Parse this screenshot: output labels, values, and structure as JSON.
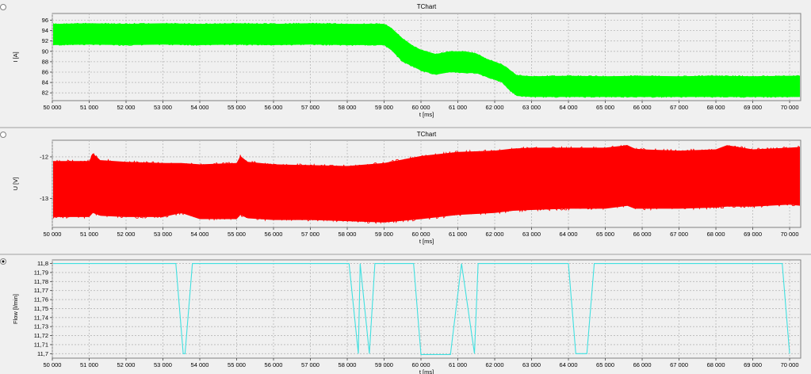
{
  "chart_data": [
    {
      "type": "line",
      "title": "TChart",
      "ylabel": "I [A]",
      "xlabel": "t [ms]",
      "xlim": [
        50000,
        70300
      ],
      "ylim": [
        80.5,
        97.3
      ],
      "xticks": [
        "50 000",
        "51 000",
        "52 000",
        "53 000",
        "54 000",
        "55 000",
        "56 000",
        "57 000",
        "58 000",
        "59 000",
        "60 000",
        "61 000",
        "62 000",
        "63 000",
        "64 000",
        "65 000",
        "66 000",
        "67 000",
        "68 000",
        "69 000",
        "70 000"
      ],
      "yticks": [
        "82",
        "84",
        "86",
        "88",
        "90",
        "92",
        "94",
        "96"
      ],
      "series": [
        {
          "color": "#00ff00",
          "x": [
            50000,
            51000,
            52000,
            53000,
            54000,
            55000,
            56000,
            57000,
            58000,
            59000,
            59200,
            59500,
            59800,
            60000,
            60400,
            60800,
            61200,
            61500,
            61800,
            62000,
            62200,
            62400,
            62600,
            63000,
            64000,
            65000,
            66000,
            67000,
            68000,
            69000,
            70000,
            70300
          ],
          "ymin": [
            91.2,
            91.3,
            91.2,
            91.3,
            91.2,
            91.3,
            91.2,
            91.3,
            91.2,
            91.2,
            90.2,
            88.0,
            87.0,
            86.3,
            85.5,
            86.0,
            85.8,
            85.8,
            85.0,
            84.5,
            84.0,
            82.5,
            81.4,
            81.2,
            81.2,
            81.2,
            81.2,
            81.2,
            81.2,
            81.2,
            81.2,
            81.2
          ],
          "ymax": [
            95.3,
            95.4,
            95.3,
            95.4,
            95.3,
            95.4,
            95.3,
            95.4,
            95.3,
            95.3,
            94.5,
            92.5,
            91.0,
            90.3,
            89.5,
            90.0,
            90.0,
            89.6,
            88.5,
            88.0,
            87.5,
            86.5,
            85.4,
            85.2,
            85.3,
            85.2,
            85.3,
            85.2,
            85.3,
            85.2,
            85.3,
            85.3
          ]
        }
      ]
    },
    {
      "type": "line",
      "title": "TChart",
      "ylabel": "U [V]",
      "xlabel": "t [ms]",
      "xlim": [
        50000,
        70300
      ],
      "ylim": [
        -13.7,
        -11.6
      ],
      "xticks": [
        "50 000",
        "51 000",
        "52 000",
        "53 000",
        "54 000",
        "55 000",
        "56 000",
        "57 000",
        "58 000",
        "59 000",
        "60 000",
        "61 000",
        "62 000",
        "63 000",
        "64 000",
        "65 000",
        "66 000",
        "67 000",
        "68 000",
        "69 000",
        "70 000"
      ],
      "yticks": [
        "-12",
        "-13"
      ],
      "series": [
        {
          "color": "#ff0000",
          "x": [
            50000,
            51000,
            51100,
            51300,
            52000,
            53000,
            53500,
            54000,
            55000,
            55100,
            55300,
            56000,
            57000,
            58000,
            59000,
            60000,
            61000,
            62000,
            62500,
            63000,
            64000,
            65000,
            65600,
            65800,
            66000,
            67000,
            68000,
            68300,
            69000,
            70000,
            70300
          ],
          "ymin": [
            -13.45,
            -13.45,
            -13.35,
            -13.42,
            -13.45,
            -13.45,
            -13.35,
            -13.5,
            -13.5,
            -13.4,
            -13.48,
            -13.52,
            -13.52,
            -13.55,
            -13.58,
            -13.5,
            -13.4,
            -13.35,
            -13.3,
            -13.28,
            -13.25,
            -13.25,
            -13.18,
            -13.25,
            -13.25,
            -13.25,
            -13.22,
            -13.2,
            -13.2,
            -13.15,
            -13.18
          ],
          "ymax": [
            -12.1,
            -12.1,
            -11.92,
            -12.08,
            -12.12,
            -12.15,
            -12.15,
            -12.18,
            -12.15,
            -11.98,
            -12.12,
            -12.18,
            -12.2,
            -12.22,
            -12.15,
            -11.98,
            -11.88,
            -11.85,
            -11.8,
            -11.78,
            -11.78,
            -11.78,
            -11.72,
            -11.8,
            -11.82,
            -11.85,
            -11.82,
            -11.72,
            -11.82,
            -11.78,
            -11.76
          ]
        }
      ]
    },
    {
      "type": "line",
      "title": "",
      "ylabel": "Flow [l/min]",
      "xlabel": "t [ms]",
      "xlim": [
        50000,
        70300
      ],
      "ylim": [
        11.695,
        11.804
      ],
      "xticks": [
        "50 000",
        "51 000",
        "52 000",
        "53 000",
        "54 000",
        "55 000",
        "56 000",
        "57 000",
        "58 000",
        "59 000",
        "60 000",
        "61 000",
        "62 000",
        "63 000",
        "64 000",
        "65 000",
        "66 000",
        "67 000",
        "68 000",
        "69 000",
        "70 000"
      ],
      "yticks": [
        "11,8",
        "11,79",
        "11,78",
        "11,77",
        "11,76",
        "11,75",
        "11,74",
        "11,73",
        "11,72",
        "11,71",
        "11,7"
      ],
      "series": [
        {
          "color": "#40e0e0",
          "x": [
            50000,
            53350,
            53550,
            53600,
            53800,
            58050,
            58300,
            58350,
            58600,
            58750,
            59000,
            59050,
            59800,
            60000,
            60800,
            61100,
            61450,
            61550,
            61900,
            64000,
            64200,
            64500,
            64700,
            69800,
            70000
          ],
          "y": [
            11.8,
            11.8,
            11.7,
            11.7,
            11.8,
            11.8,
            11.7,
            11.8,
            11.7,
            11.8,
            11.8,
            11.8,
            11.8,
            11.699,
            11.699,
            11.8,
            11.7,
            11.8,
            11.8,
            11.8,
            11.7,
            11.7,
            11.8,
            11.8,
            11.7
          ]
        }
      ]
    }
  ]
}
